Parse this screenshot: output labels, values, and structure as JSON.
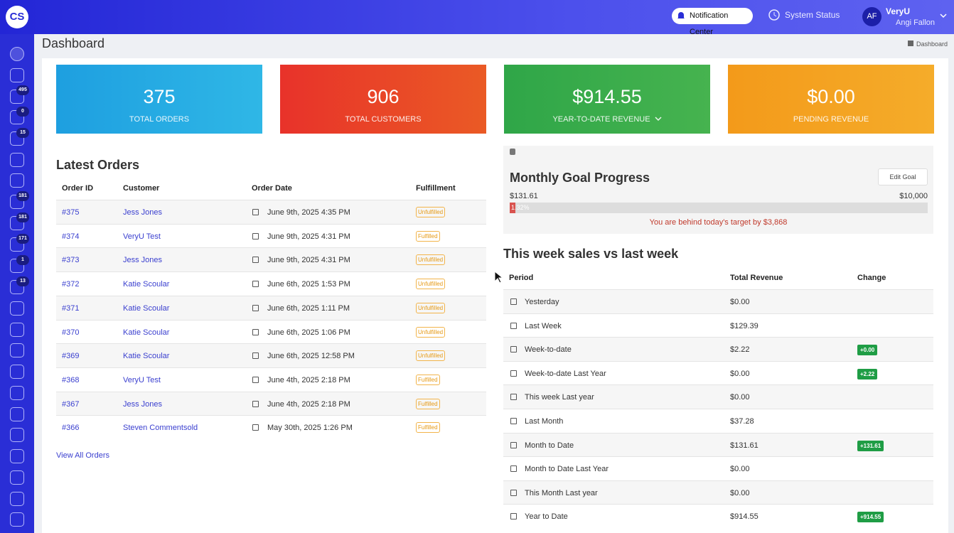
{
  "header": {
    "logo": "CS",
    "notification": "Notification Center",
    "status": "System Status",
    "user_initials": "AF",
    "user_name": "VeryU",
    "user_sub": "Angi Fallon"
  },
  "sidebar": {
    "badges": [
      "495",
      "0",
      "15",
      "181",
      "181",
      "171",
      "1",
      "13"
    ]
  },
  "page": {
    "title": "Dashboard",
    "breadcrumb": "Dashboard"
  },
  "stats": [
    {
      "value": "375",
      "label": "TOTAL ORDERS"
    },
    {
      "value": "906",
      "label": "TOTAL CUSTOMERS"
    },
    {
      "value": "$914.55",
      "label": "YEAR-TO-DATE REVENUE"
    },
    {
      "value": "$0.00",
      "label": "PENDING REVENUE"
    }
  ],
  "orders": {
    "title": "Latest Orders",
    "columns": [
      "Order ID",
      "Customer",
      "Order Date",
      "Fulfillment"
    ],
    "rows": [
      {
        "id": "#375",
        "customer": "Jess Jones",
        "date": "June 9th, 2025 4:35 PM",
        "status": "Unfulfilled"
      },
      {
        "id": "#374",
        "customer": "VeryU Test",
        "date": "June 9th, 2025 4:31 PM",
        "status": "Fulfilled"
      },
      {
        "id": "#373",
        "customer": "Jess Jones",
        "date": "June 9th, 2025 4:31 PM",
        "status": "Unfulfilled"
      },
      {
        "id": "#372",
        "customer": "Katie Scoular",
        "date": "June 6th, 2025 1:53 PM",
        "status": "Unfulfilled"
      },
      {
        "id": "#371",
        "customer": "Katie Scoular",
        "date": "June 6th, 2025 1:11 PM",
        "status": "Unfulfilled"
      },
      {
        "id": "#370",
        "customer": "Katie Scoular",
        "date": "June 6th, 2025 1:06 PM",
        "status": "Unfulfilled"
      },
      {
        "id": "#369",
        "customer": "Katie Scoular",
        "date": "June 6th, 2025 12:58 PM",
        "status": "Unfulfilled"
      },
      {
        "id": "#368",
        "customer": "VeryU Test",
        "date": "June 4th, 2025 2:18 PM",
        "status": "Fulfilled"
      },
      {
        "id": "#367",
        "customer": "Jess Jones",
        "date": "June 4th, 2025 2:18 PM",
        "status": "Fulfilled"
      },
      {
        "id": "#366",
        "customer": "Steven Commentsold",
        "date": "May 30th, 2025 1:26 PM",
        "status": "Fulfilled"
      }
    ],
    "link": "View All Orders"
  },
  "goal": {
    "title": "Monthly Goal Progress",
    "button": "Edit Goal",
    "current": "$131.61",
    "target": "$10,000",
    "percent": "1.32%",
    "message": "You are behind today's target by $3,868"
  },
  "sales": {
    "title": "This week sales vs last week",
    "columns": [
      "Period",
      "Total Revenue",
      "Change"
    ],
    "rows": [
      {
        "period": "Yesterday",
        "revenue": "$0.00",
        "change": null
      },
      {
        "period": "Last Week",
        "revenue": "$129.39",
        "change": null
      },
      {
        "period": "Week-to-date",
        "revenue": "$2.22",
        "change": "+0.00"
      },
      {
        "period": "Week-to-date Last Year",
        "revenue": "$0.00",
        "change": "+2.22"
      },
      {
        "period": "This week Last year",
        "revenue": "$0.00",
        "change": null
      },
      {
        "period": "Last Month",
        "revenue": "$37.28",
        "change": null
      },
      {
        "period": "Month to Date",
        "revenue": "$131.61",
        "change": "+131.61"
      },
      {
        "period": "Month to Date Last Year",
        "revenue": "$0.00",
        "change": null
      },
      {
        "period": "This Month Last year",
        "revenue": "$0.00",
        "change": null
      },
      {
        "period": "Year to Date",
        "revenue": "$914.55",
        "change": "+914.55"
      }
    ]
  }
}
